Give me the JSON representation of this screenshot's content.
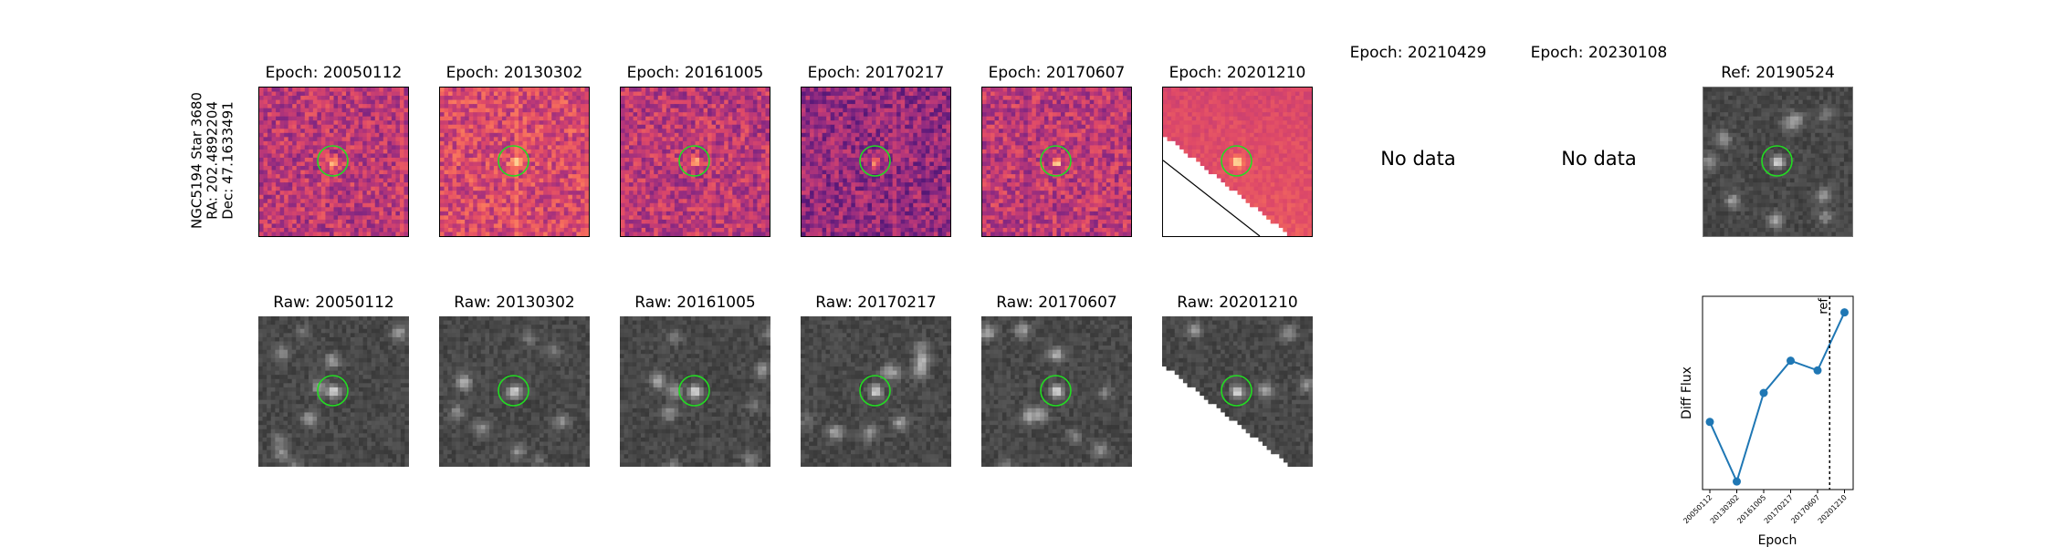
{
  "star_label": {
    "line1": "NGC5194 Star 3680",
    "line2": "RA: 202.4892204",
    "line3": "Dec: 47.1633491"
  },
  "diff_titles": [
    "Epoch: 20050112",
    "Epoch: 20130302",
    "Epoch: 20161005",
    "Epoch: 20170217",
    "Epoch: 20170607",
    "Epoch: 20201210",
    "Epoch: 20210429",
    "Epoch: 20230108"
  ],
  "ref_title": "Ref: 20190524",
  "raw_titles": [
    "Raw: 20050112",
    "Raw: 20130302",
    "Raw: 20161005",
    "Raw: 20170217",
    "Raw: 20170607",
    "Raw: 20201210"
  ],
  "no_data_text": "No data",
  "colors": {
    "circle": "#22dd22",
    "series": "#1f77b4",
    "diff_cmap": [
      "#30105b",
      "#5c1a7a",
      "#8c2a81",
      "#b73779",
      "#de4968",
      "#f66d5c",
      "#fe9f6d",
      "#fecf92"
    ],
    "ref_line": "#000000"
  },
  "chart_data": {
    "type": "line",
    "xlabel": "Epoch",
    "ylabel": "Diff Flux",
    "categories": [
      "20050112",
      "20130302",
      "20161005",
      "20170217",
      "20170607",
      "20201210"
    ],
    "values": [
      0.42,
      0.05,
      0.6,
      0.8,
      0.74,
      1.1
    ],
    "ylim": [
      0.0,
      1.2
    ],
    "ref_marker": {
      "label": "ref",
      "position_between": [
        "20170607",
        "20201210"
      ],
      "fraction": 0.45
    },
    "grid": false
  }
}
